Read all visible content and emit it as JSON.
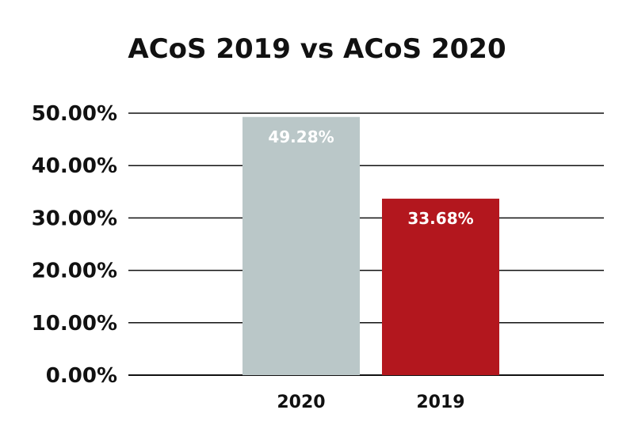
{
  "chart_data": {
    "type": "bar",
    "title": "ACoS 2019 vs ACoS 2020",
    "categories": [
      "2020",
      "2019"
    ],
    "values": [
      49.28,
      33.68
    ],
    "data_labels": [
      "49.28%",
      "33.68%"
    ],
    "bar_colors": [
      "#bac7c8",
      "#b3171e"
    ],
    "ylim": [
      0,
      50
    ],
    "yticks": [
      0,
      10,
      20,
      30,
      40,
      50
    ],
    "ytick_labels": [
      "0.00%",
      "10.00%",
      "20.00%",
      "30.00%",
      "40.00%",
      "50.00%"
    ],
    "grid": true,
    "legend": "none"
  }
}
